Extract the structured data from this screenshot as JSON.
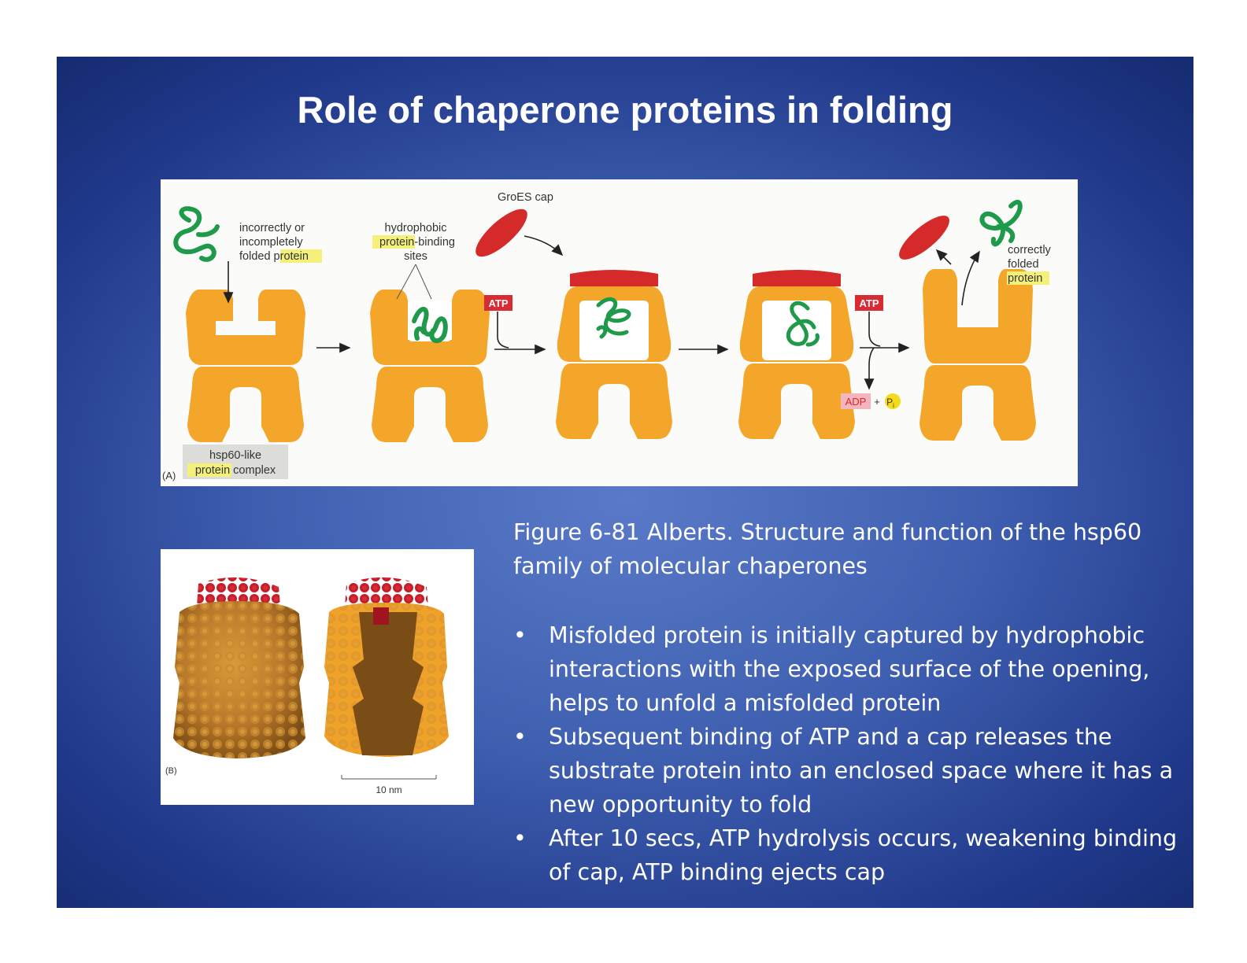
{
  "slide": {
    "title": "Role of chaperone proteins in folding",
    "caption": "Figure 6-81 Alberts.  Structure and function of the hsp60 family of molecular chaperones",
    "bullets": [
      "Misfolded protein is initially captured by hydrophobic interactions with the exposed surface of the opening, helps to unfold a misfolded protein",
      "Subsequent binding of ATP and a cap releases the substrate protein into an enclosed space where it has a new opportunity to fold",
      "After 10 secs, ATP hydrolysis occurs, weakening binding of cap, ATP binding ejects cap"
    ],
    "bullet_glyph": "•"
  },
  "figure_a": {
    "panel_letter": "(A)",
    "label_misfolded_1": "incorrectly or",
    "label_misfolded_2": "incompletely",
    "label_misfolded_3a": "folded ",
    "label_misfolded_3b": "protein",
    "label_hydrophobic_1": "hydrophobic",
    "label_hydrophobic_2a": "protein",
    "label_hydrophobic_2b": "-binding",
    "label_hydrophobic_3": "sites",
    "label_groes": "GroES cap",
    "label_atp_1": "ATP",
    "label_atp_2": "ATP",
    "label_adp": "ADP",
    "label_plus": "+",
    "label_pi": "P",
    "label_pi_sub": "i",
    "label_correct_1": "correctly",
    "label_correct_2": "folded",
    "label_correct_3": "protein",
    "label_complex_1": "hsp60-like",
    "label_complex_2a": "protein",
    "label_complex_2b": " complex"
  },
  "figure_b": {
    "panel_letter": "(B)",
    "scale_label": "10 nm"
  },
  "colors": {
    "chaperone": "#f4a62a",
    "cap": "#d42a2a",
    "protein": "#1e9a4a",
    "highlight": "#f4f07a",
    "atp_box": "#d92b34"
  }
}
